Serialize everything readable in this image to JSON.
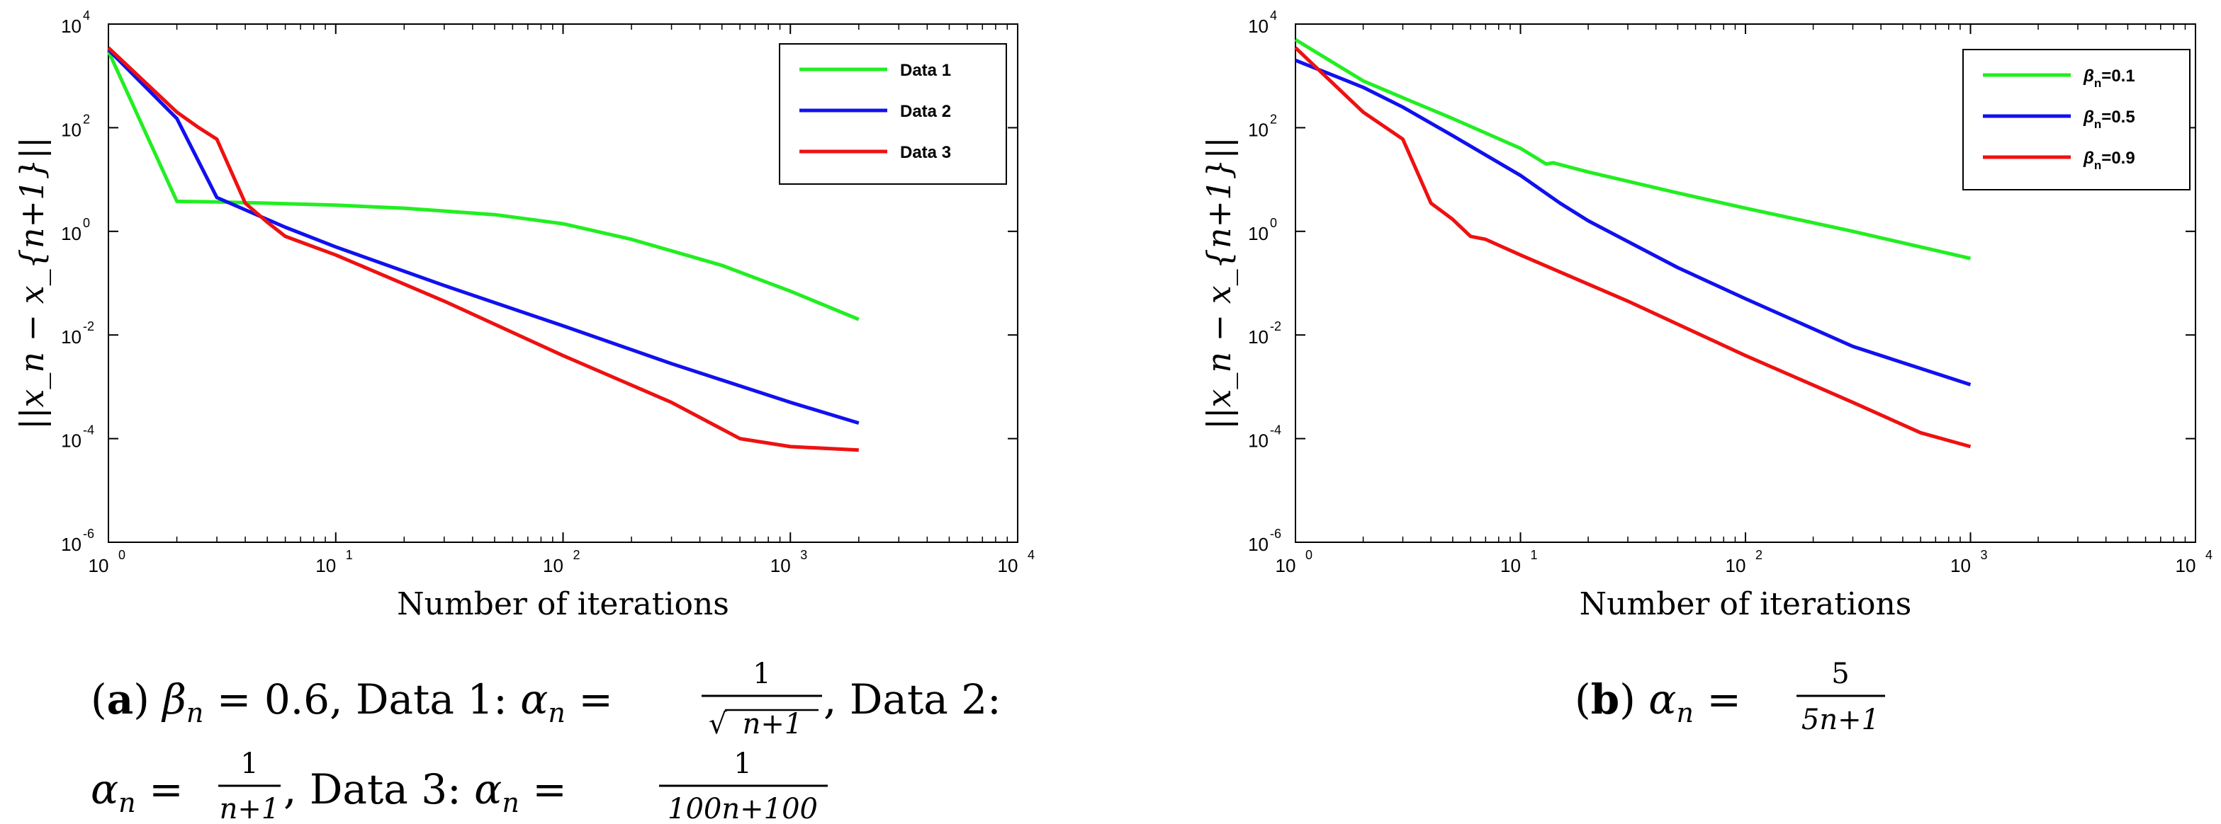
{
  "chart_data": [
    {
      "type": "line",
      "xscale": "log",
      "yscale": "log",
      "xlim": [
        1,
        10000
      ],
      "ylim": [
        1e-06,
        10000
      ],
      "xlabel": "Number of iterations",
      "ylabel": "||x_n − x_{n+1}||",
      "x_ticks": [
        1,
        10,
        100,
        1000,
        10000
      ],
      "x_tick_labels": [
        {
          "base": "10",
          "exp": "0"
        },
        {
          "base": "10",
          "exp": "1"
        },
        {
          "base": "10",
          "exp": "2"
        },
        {
          "base": "10",
          "exp": "3"
        },
        {
          "base": "10",
          "exp": "4"
        }
      ],
      "y_ticks": [
        1e-06,
        0.0001,
        0.01,
        1,
        100,
        10000
      ],
      "y_tick_labels": [
        {
          "base": "10",
          "exp": "-6"
        },
        {
          "base": "10",
          "exp": "-4"
        },
        {
          "base": "10",
          "exp": "-2"
        },
        {
          "base": "10",
          "exp": "0"
        },
        {
          "base": "10",
          "exp": "2"
        },
        {
          "base": "10",
          "exp": "4"
        }
      ],
      "legend_position": "top-right",
      "series": [
        {
          "name": "Data 1",
          "color": "#22ee22",
          "x": [
            1,
            2,
            3,
            5,
            10,
            20,
            50,
            100,
            200,
            500,
            1000,
            2000
          ],
          "y": [
            3000,
            3.8,
            3.7,
            3.5,
            3.2,
            2.8,
            2.1,
            1.4,
            0.7,
            0.22,
            0.07,
            0.02
          ]
        },
        {
          "name": "Data 2",
          "color": "#1111ee",
          "x": [
            1,
            2,
            3,
            6,
            10,
            30,
            100,
            300,
            1000,
            2000
          ],
          "y": [
            3200,
            150,
            4.5,
            1.2,
            0.5,
            0.09,
            0.015,
            0.0028,
            0.0005,
            0.0002
          ]
        },
        {
          "name": "Data 3",
          "color": "#ee1111",
          "x": [
            1,
            2,
            2.5,
            3,
            4,
            5,
            6,
            10,
            30,
            100,
            300,
            600,
            1000,
            2000
          ],
          "y": [
            3500,
            200,
            100,
            60,
            3.5,
            1.5,
            0.8,
            0.35,
            0.045,
            0.004,
            0.0005,
            0.0001,
            7e-05,
            6e-05
          ]
        }
      ]
    },
    {
      "type": "line",
      "xscale": "log",
      "yscale": "log",
      "xlim": [
        1,
        10000
      ],
      "ylim": [
        1e-06,
        10000
      ],
      "xlabel": "Number of iterations",
      "ylabel": "||x_n − x_{n+1}||",
      "x_ticks": [
        1,
        10,
        100,
        1000,
        10000
      ],
      "x_tick_labels": [
        {
          "base": "10",
          "exp": "0"
        },
        {
          "base": "10",
          "exp": "1"
        },
        {
          "base": "10",
          "exp": "2"
        },
        {
          "base": "10",
          "exp": "3"
        },
        {
          "base": "10",
          "exp": "4"
        }
      ],
      "y_ticks": [
        1e-06,
        0.0001,
        0.01,
        1,
        100,
        10000
      ],
      "y_tick_labels": [
        {
          "base": "10",
          "exp": "-6"
        },
        {
          "base": "10",
          "exp": "-4"
        },
        {
          "base": "10",
          "exp": "-2"
        },
        {
          "base": "10",
          "exp": "0"
        },
        {
          "base": "10",
          "exp": "2"
        },
        {
          "base": "10",
          "exp": "4"
        }
      ],
      "legend_position": "top-right",
      "series": [
        {
          "name": "βn=0.1",
          "legend_symbol": "β",
          "legend_sub": "n",
          "legend_rest": "=0.1",
          "color": "#22ee22",
          "x": [
            1,
            2,
            3,
            5,
            10,
            13,
            14,
            20,
            50,
            100,
            300,
            1000
          ],
          "y": [
            5000,
            800,
            380,
            150,
            40,
            20,
            21,
            14,
            5.5,
            2.8,
            1.0,
            0.3
          ]
        },
        {
          "name": "βn=0.5",
          "legend_symbol": "β",
          "legend_sub": "n",
          "legend_rest": "=0.5",
          "color": "#1111ee",
          "x": [
            1,
            2,
            3,
            5,
            10,
            15,
            20,
            50,
            100,
            300,
            1000
          ],
          "y": [
            2000,
            600,
            250,
            70,
            12,
            3.5,
            1.6,
            0.2,
            0.05,
            0.006,
            0.0011
          ]
        },
        {
          "name": "βn=0.9",
          "legend_symbol": "β",
          "legend_sub": "n",
          "legend_rest": "=0.9",
          "color": "#ee1111",
          "x": [
            1,
            2,
            3,
            4,
            5,
            6,
            7,
            10,
            30,
            100,
            300,
            600,
            1000
          ],
          "y": [
            3500,
            200,
            60,
            3.5,
            1.7,
            0.8,
            0.7,
            0.35,
            0.045,
            0.004,
            0.0005,
            0.00013,
            7e-05
          ]
        }
      ]
    }
  ],
  "captions": {
    "a": {
      "label": "a",
      "line1_text": "β_n = 0.6, Data 1: α_n = 1/√(n+1), Data 2:",
      "line2_text": "α_n = 1/(n+1), Data 3: α_n = 1/(100n+100)",
      "beta_value": "0.6",
      "data1": "Data 1:",
      "data2": "Data 2:",
      "data3": "Data 3:",
      "frac1_num": "1",
      "frac1_den": "n+1",
      "frac2_num": "1",
      "frac2_den": "n+1",
      "frac3_num": "1",
      "frac3_den": "100n+100"
    },
    "b": {
      "label": "b",
      "text": "α_n = 5/(5n+1)",
      "frac_num": "5",
      "frac_den": "5n+1"
    }
  },
  "colors": {
    "axis": "#000000",
    "background": "#ffffff"
  }
}
